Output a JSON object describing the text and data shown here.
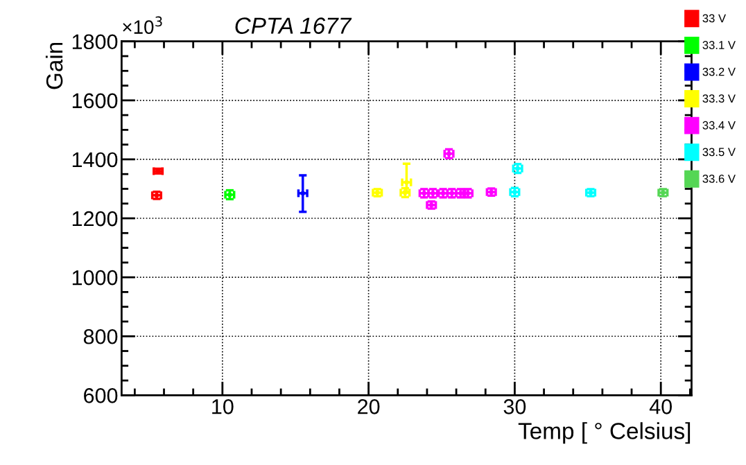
{
  "chart_data": {
    "type": "scatter",
    "title": "CPTA 1677",
    "xlabel": "Temp [ ° Celsius]",
    "ylabel": "Gain",
    "annotations": [
      "×10$^{3}$"
    ],
    "xlim": [
      3.1,
      42.1
    ],
    "xticks": [
      10,
      20,
      30,
      40
    ],
    "ylim": [
      600,
      1800
    ],
    "yticks": [
      600,
      800,
      1000,
      1200,
      1400,
      1600,
      1800
    ],
    "grid": true,
    "legend": "top right",
    "marker": "circle",
    "series": [
      {
        "name": "33 V",
        "color": "#ff0000",
        "x": [
          5.5,
          5.6
        ],
        "values": [
          1278,
          1360
        ],
        "errors": [
          12,
          8
        ],
        "xerrors": [
          0.3,
          0.3
        ]
      },
      {
        "name": "33.1 V",
        "color": "#00ff00",
        "x": [
          10.5
        ],
        "values": [
          1280
        ],
        "errors": [
          15
        ],
        "xerrors": [
          0.3
        ]
      },
      {
        "name": "33.2 V",
        "color": "#0000ff",
        "x": [
          15.5
        ],
        "values": [
          1285
        ],
        "errors": [
          [
            1222,
            1346
          ]
        ],
        "xerrors": [
          0.3
        ]
      },
      {
        "name": "33.3 V",
        "color": "#ffff00",
        "x": [
          20.6,
          22.5,
          22.6
        ],
        "values": [
          1287,
          1287,
          1322
        ],
        "errors": [
          12,
          15,
          [
            1290,
            1385
          ]
        ],
        "xerrors": [
          0.3,
          0.3,
          0.3
        ]
      },
      {
        "name": "33.4 V",
        "color": "#ff00ff",
        "x": [
          23.8,
          24.4,
          25.1,
          25.7,
          26.3,
          26.8,
          28.4,
          24.3,
          25.5
        ],
        "values": [
          1285,
          1285,
          1285,
          1285,
          1285,
          1285,
          1289,
          1245,
          1419
        ],
        "errors": [
          14,
          14,
          14,
          14,
          14,
          14,
          12,
          12,
          15
        ],
        "xerrors": [
          0.3,
          0.3,
          0.3,
          0.3,
          0.3,
          0.3,
          0.3,
          0.3,
          0.3
        ]
      },
      {
        "name": "33.5 V",
        "color": "#00ffff",
        "x": [
          30.0,
          30.2,
          35.2
        ],
        "values": [
          1289,
          1369,
          1287
        ],
        "errors": [
          14,
          15,
          12
        ],
        "xerrors": [
          0.3,
          0.3,
          0.3
        ]
      },
      {
        "name": "33.6 V",
        "color": "#55d655",
        "x": [
          40.15
        ],
        "values": [
          1287
        ],
        "errors": [
          12
        ],
        "xerrors": [
          0.3
        ]
      }
    ]
  }
}
